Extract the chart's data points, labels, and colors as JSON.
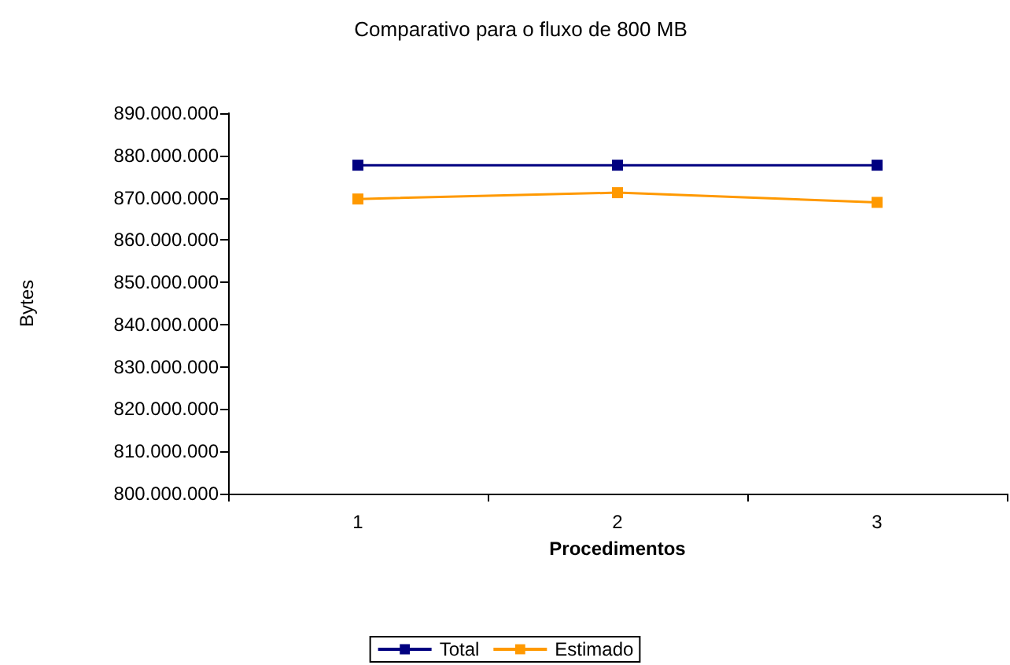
{
  "chart_data": {
    "type": "line",
    "title": "Comparativo para o fluxo de 800 MB",
    "xlabel": "Procedimentos",
    "ylabel": "Bytes",
    "categories": [
      "1",
      "2",
      "3"
    ],
    "series": [
      {
        "name": "Total",
        "color": "#000080",
        "values": [
          877700000,
          877700000,
          877700000
        ]
      },
      {
        "name": "Estimado",
        "color": "#ff9900",
        "values": [
          869700000,
          871200000,
          868900000
        ]
      }
    ],
    "ylim": [
      800000000,
      890000000
    ],
    "yticks": [
      {
        "value": 800000000,
        "label": "800.000.000"
      },
      {
        "value": 810000000,
        "label": "810.000.000"
      },
      {
        "value": 820000000,
        "label": "820.000.000"
      },
      {
        "value": 830000000,
        "label": "830.000.000"
      },
      {
        "value": 840000000,
        "label": "840.000.000"
      },
      {
        "value": 850000000,
        "label": "850.000.000"
      },
      {
        "value": 860000000,
        "label": "860.000.000"
      },
      {
        "value": 870000000,
        "label": "870.000.000"
      },
      {
        "value": 880000000,
        "label": "880.000.000"
      },
      {
        "value": 890000000,
        "label": "890.000.000"
      }
    ],
    "grid": false,
    "legend": "bottom",
    "marker": "square",
    "line_style": "solid"
  }
}
